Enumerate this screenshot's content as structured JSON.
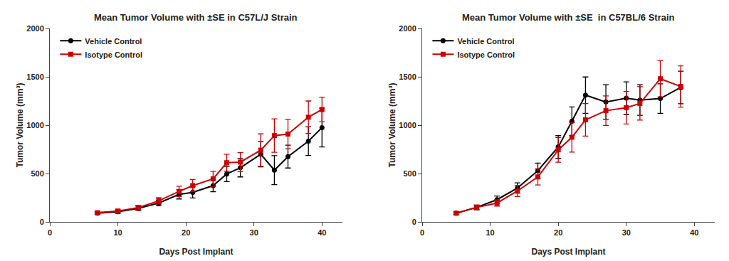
{
  "chart_data": [
    {
      "type": "line",
      "title": "Mean Tumor Volume with ±SE in C57L/J Strain",
      "xlabel": "Days Post Implant",
      "ylabel": "Tumor Volume (mm³)",
      "xlim": [
        0,
        43
      ],
      "ylim": [
        0,
        2000
      ],
      "xticks": [
        0,
        10,
        20,
        30,
        40
      ],
      "yticks": [
        0,
        500,
        1000,
        1500,
        2000
      ],
      "grid": false,
      "legend": "upper left",
      "x": [
        7,
        10,
        13,
        16,
        19,
        21,
        24,
        26,
        28,
        31,
        33,
        35,
        38,
        40
      ],
      "series": [
        {
          "name": "Vehicle Control",
          "color": "#000000",
          "marker": "circle",
          "line_style": "solid",
          "values": [
            90,
            105,
            140,
            195,
            285,
            305,
            375,
            495,
            560,
            700,
            535,
            675,
            835,
            975
          ],
          "errors": [
            12,
            15,
            22,
            28,
            48,
            58,
            63,
            78,
            95,
            130,
            150,
            118,
            148,
            200
          ]
        },
        {
          "name": "Isotype Control",
          "color": "#cc0000",
          "marker": "square",
          "line_style": "solid",
          "values": [
            95,
            112,
            148,
            218,
            315,
            375,
            445,
            612,
            618,
            742,
            892,
            908,
            1082,
            1162
          ],
          "errors": [
            13,
            18,
            23,
            33,
            53,
            63,
            78,
            88,
            98,
            168,
            173,
            152,
            168,
            128
          ]
        }
      ]
    },
    {
      "type": "line",
      "title": "Mean Tumor Volume with ±SE  in C57BL/6 Strain",
      "xlabel": "Days Post Implant",
      "ylabel": "Tumor Volume (mm³)",
      "xlim": [
        0,
        43
      ],
      "ylim": [
        0,
        2000
      ],
      "xticks": [
        0,
        10,
        20,
        30,
        40
      ],
      "yticks": [
        0,
        500,
        1000,
        1500,
        2000
      ],
      "grid": false,
      "legend": "upper left",
      "x": [
        5,
        8,
        11,
        14,
        17,
        20,
        22,
        24,
        27,
        30,
        32,
        35,
        38
      ],
      "series": [
        {
          "name": "Vehicle Control",
          "color": "#000000",
          "marker": "circle",
          "line_style": "solid",
          "values": [
            90,
            150,
            230,
            350,
            530,
            775,
            1040,
            1310,
            1240,
            1280,
            1260,
            1275,
            1390
          ],
          "errors": [
            13,
            23,
            38,
            53,
            78,
            118,
            148,
            188,
            178,
            168,
            158,
            153,
            168
          ]
        },
        {
          "name": "Isotype Control",
          "color": "#cc0000",
          "marker": "square",
          "line_style": "solid",
          "values": [
            90,
            150,
            195,
            320,
            465,
            745,
            875,
            1055,
            1150,
            1180,
            1225,
            1480,
            1400
          ],
          "errors": [
            13,
            23,
            33,
            58,
            83,
            128,
            153,
            168,
            153,
            168,
            173,
            188,
            213
          ]
        }
      ]
    }
  ]
}
